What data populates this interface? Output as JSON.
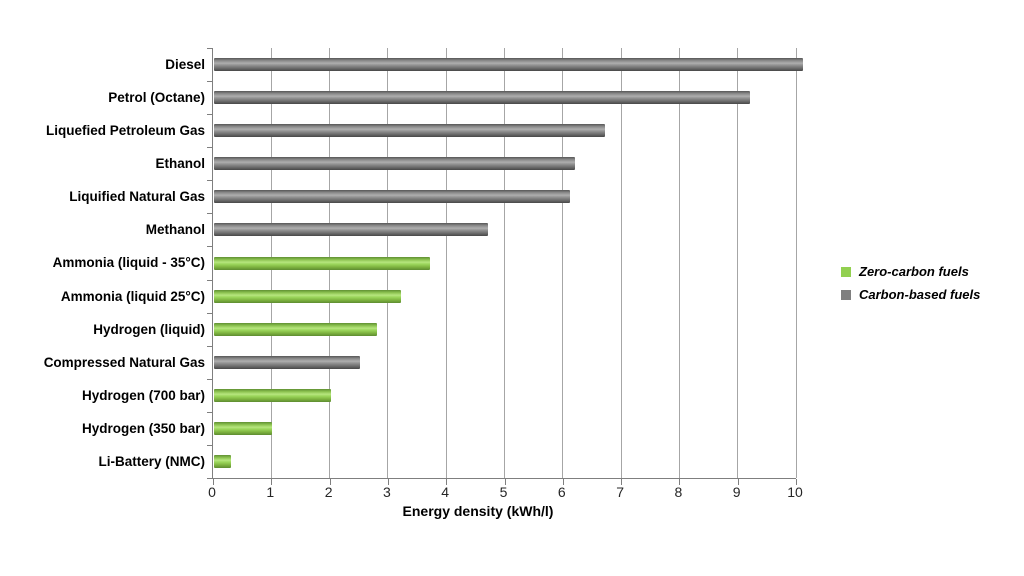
{
  "chart_data": {
    "type": "bar",
    "orientation": "horizontal",
    "title": "",
    "xlabel": "Energy density (kWh/l)",
    "ylabel": "",
    "xlim": [
      0,
      10
    ],
    "xticks": [
      0,
      1,
      2,
      3,
      4,
      5,
      6,
      7,
      8,
      9,
      10
    ],
    "grid": "vertical-gridlines-on",
    "legend_position": "right",
    "categories": [
      "Diesel",
      "Petrol (Octane)",
      "Liquefied Petroleum Gas",
      "Ethanol",
      "Liquified Natural Gas",
      "Methanol",
      "Ammonia (liquid - 35°C)",
      "Ammonia (liquid 25°C)",
      "Hydrogen (liquid)",
      "Compressed Natural Gas",
      "Hydrogen (700 bar)",
      "Hydrogen (350 bar)",
      "Li-Battery (NMC)"
    ],
    "values": [
      10.1,
      9.2,
      6.7,
      6.2,
      6.1,
      4.7,
      3.7,
      3.2,
      2.8,
      2.5,
      2.0,
      1.0,
      0.3
    ],
    "groups": [
      "carbon",
      "carbon",
      "carbon",
      "carbon",
      "carbon",
      "carbon",
      "zero",
      "zero",
      "zero",
      "carbon",
      "zero",
      "zero",
      "zero"
    ],
    "legend": [
      {
        "id": "zero",
        "label": "Zero-carbon fuels",
        "color": "#92D050"
      },
      {
        "id": "carbon",
        "label": "Carbon-based fuels",
        "color": "#7F7F7F"
      }
    ]
  }
}
